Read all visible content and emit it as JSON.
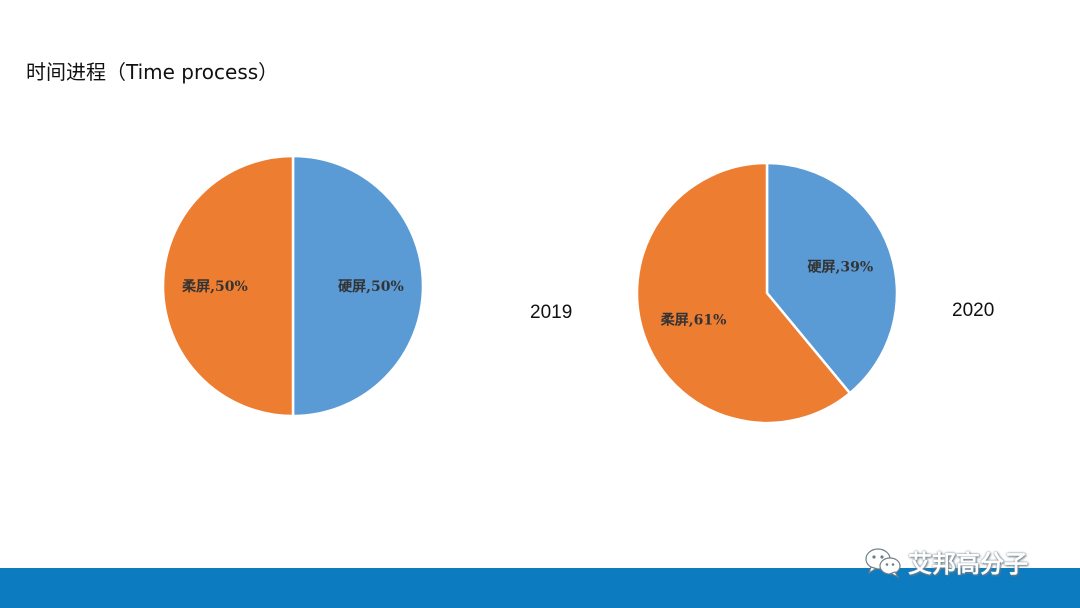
{
  "title": "时间进程（Time process）",
  "colors": {
    "hard": "#5b9bd5",
    "soft": "#ed7d31",
    "bottom_bar": "#0c7bbf"
  },
  "chart_data": [
    {
      "type": "pie",
      "year_label": "2019",
      "slices": [
        {
          "label": "硬屏",
          "value": 50,
          "display": "硬屏,50%",
          "color": "#5b9bd5"
        },
        {
          "label": "柔屏",
          "value": 50,
          "display": "柔屏,50%",
          "color": "#ed7d31"
        }
      ]
    },
    {
      "type": "pie",
      "year_label": "2020",
      "slices": [
        {
          "label": "硬屏",
          "value": 39,
          "display": "硬屏,39%",
          "color": "#5b9bd5"
        },
        {
          "label": "柔屏",
          "value": 61,
          "display": "柔屏,61%",
          "color": "#ed7d31"
        }
      ]
    }
  ],
  "watermark": {
    "text": "艾邦高分子",
    "icon": "wechat-icon"
  }
}
